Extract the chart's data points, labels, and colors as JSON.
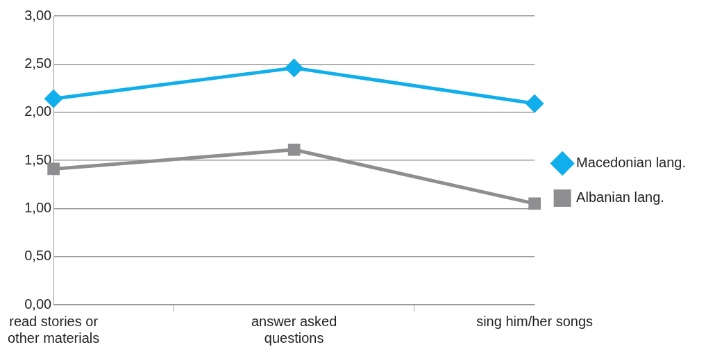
{
  "chart_data": {
    "type": "line",
    "categories": [
      "read stories or other materials",
      "answer asked questions",
      "sing him/her songs"
    ],
    "series": [
      {
        "name": "Macedonian lang.",
        "color": "#10aeea",
        "values": [
          2.14,
          2.46,
          2.09
        ],
        "marker": "diamond"
      },
      {
        "name": "Albanian lang.",
        "color": "#8e8e90",
        "values": [
          1.41,
          1.61,
          1.05
        ],
        "marker": "square"
      }
    ],
    "ylim": [
      0,
      3
    ],
    "yticks": [
      {
        "value": 0,
        "label": "0,00"
      },
      {
        "value": 0.5,
        "label": "0,50"
      },
      {
        "value": 1,
        "label": "1,00"
      },
      {
        "value": 1.5,
        "label": "1,50"
      },
      {
        "value": 2,
        "label": "2,00"
      },
      {
        "value": 2.5,
        "label": "2,50"
      },
      {
        "value": 3,
        "label": "3,00"
      }
    ],
    "grid": "y",
    "legend": "right"
  }
}
